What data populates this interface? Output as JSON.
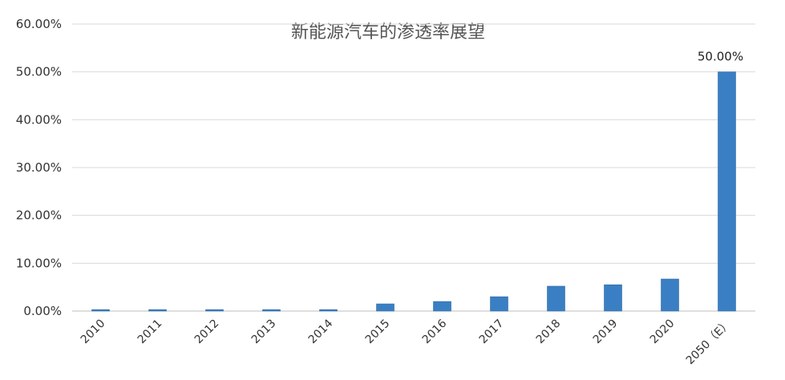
{
  "chart_data": {
    "type": "bar",
    "title": "新能源汽车的渗透率展望",
    "xlabel": "",
    "ylabel": "",
    "categories": [
      "2010",
      "2011",
      "2012",
      "2013",
      "2014",
      "2015",
      "2016",
      "2017",
      "2018",
      "2019",
      "2020",
      "2050（E）"
    ],
    "values": [
      0.3,
      0.3,
      0.3,
      0.3,
      0.3,
      1.5,
      2.0,
      3.0,
      5.2,
      5.5,
      6.7,
      50.0
    ],
    "value_unit": "%",
    "ylim": [
      0,
      60
    ],
    "yticks": [
      "0.00%",
      "10.00%",
      "20.00%",
      "30.00%",
      "40.00%",
      "50.00%",
      "60.00%"
    ],
    "data_labels": [
      {
        "index": 11,
        "text": "50.00%"
      }
    ],
    "colors": {
      "bar": "#3a7fc3",
      "bar_edge": "#2f6aa6",
      "grid": "#d9d9d9"
    },
    "grid": true,
    "legend": "none"
  }
}
